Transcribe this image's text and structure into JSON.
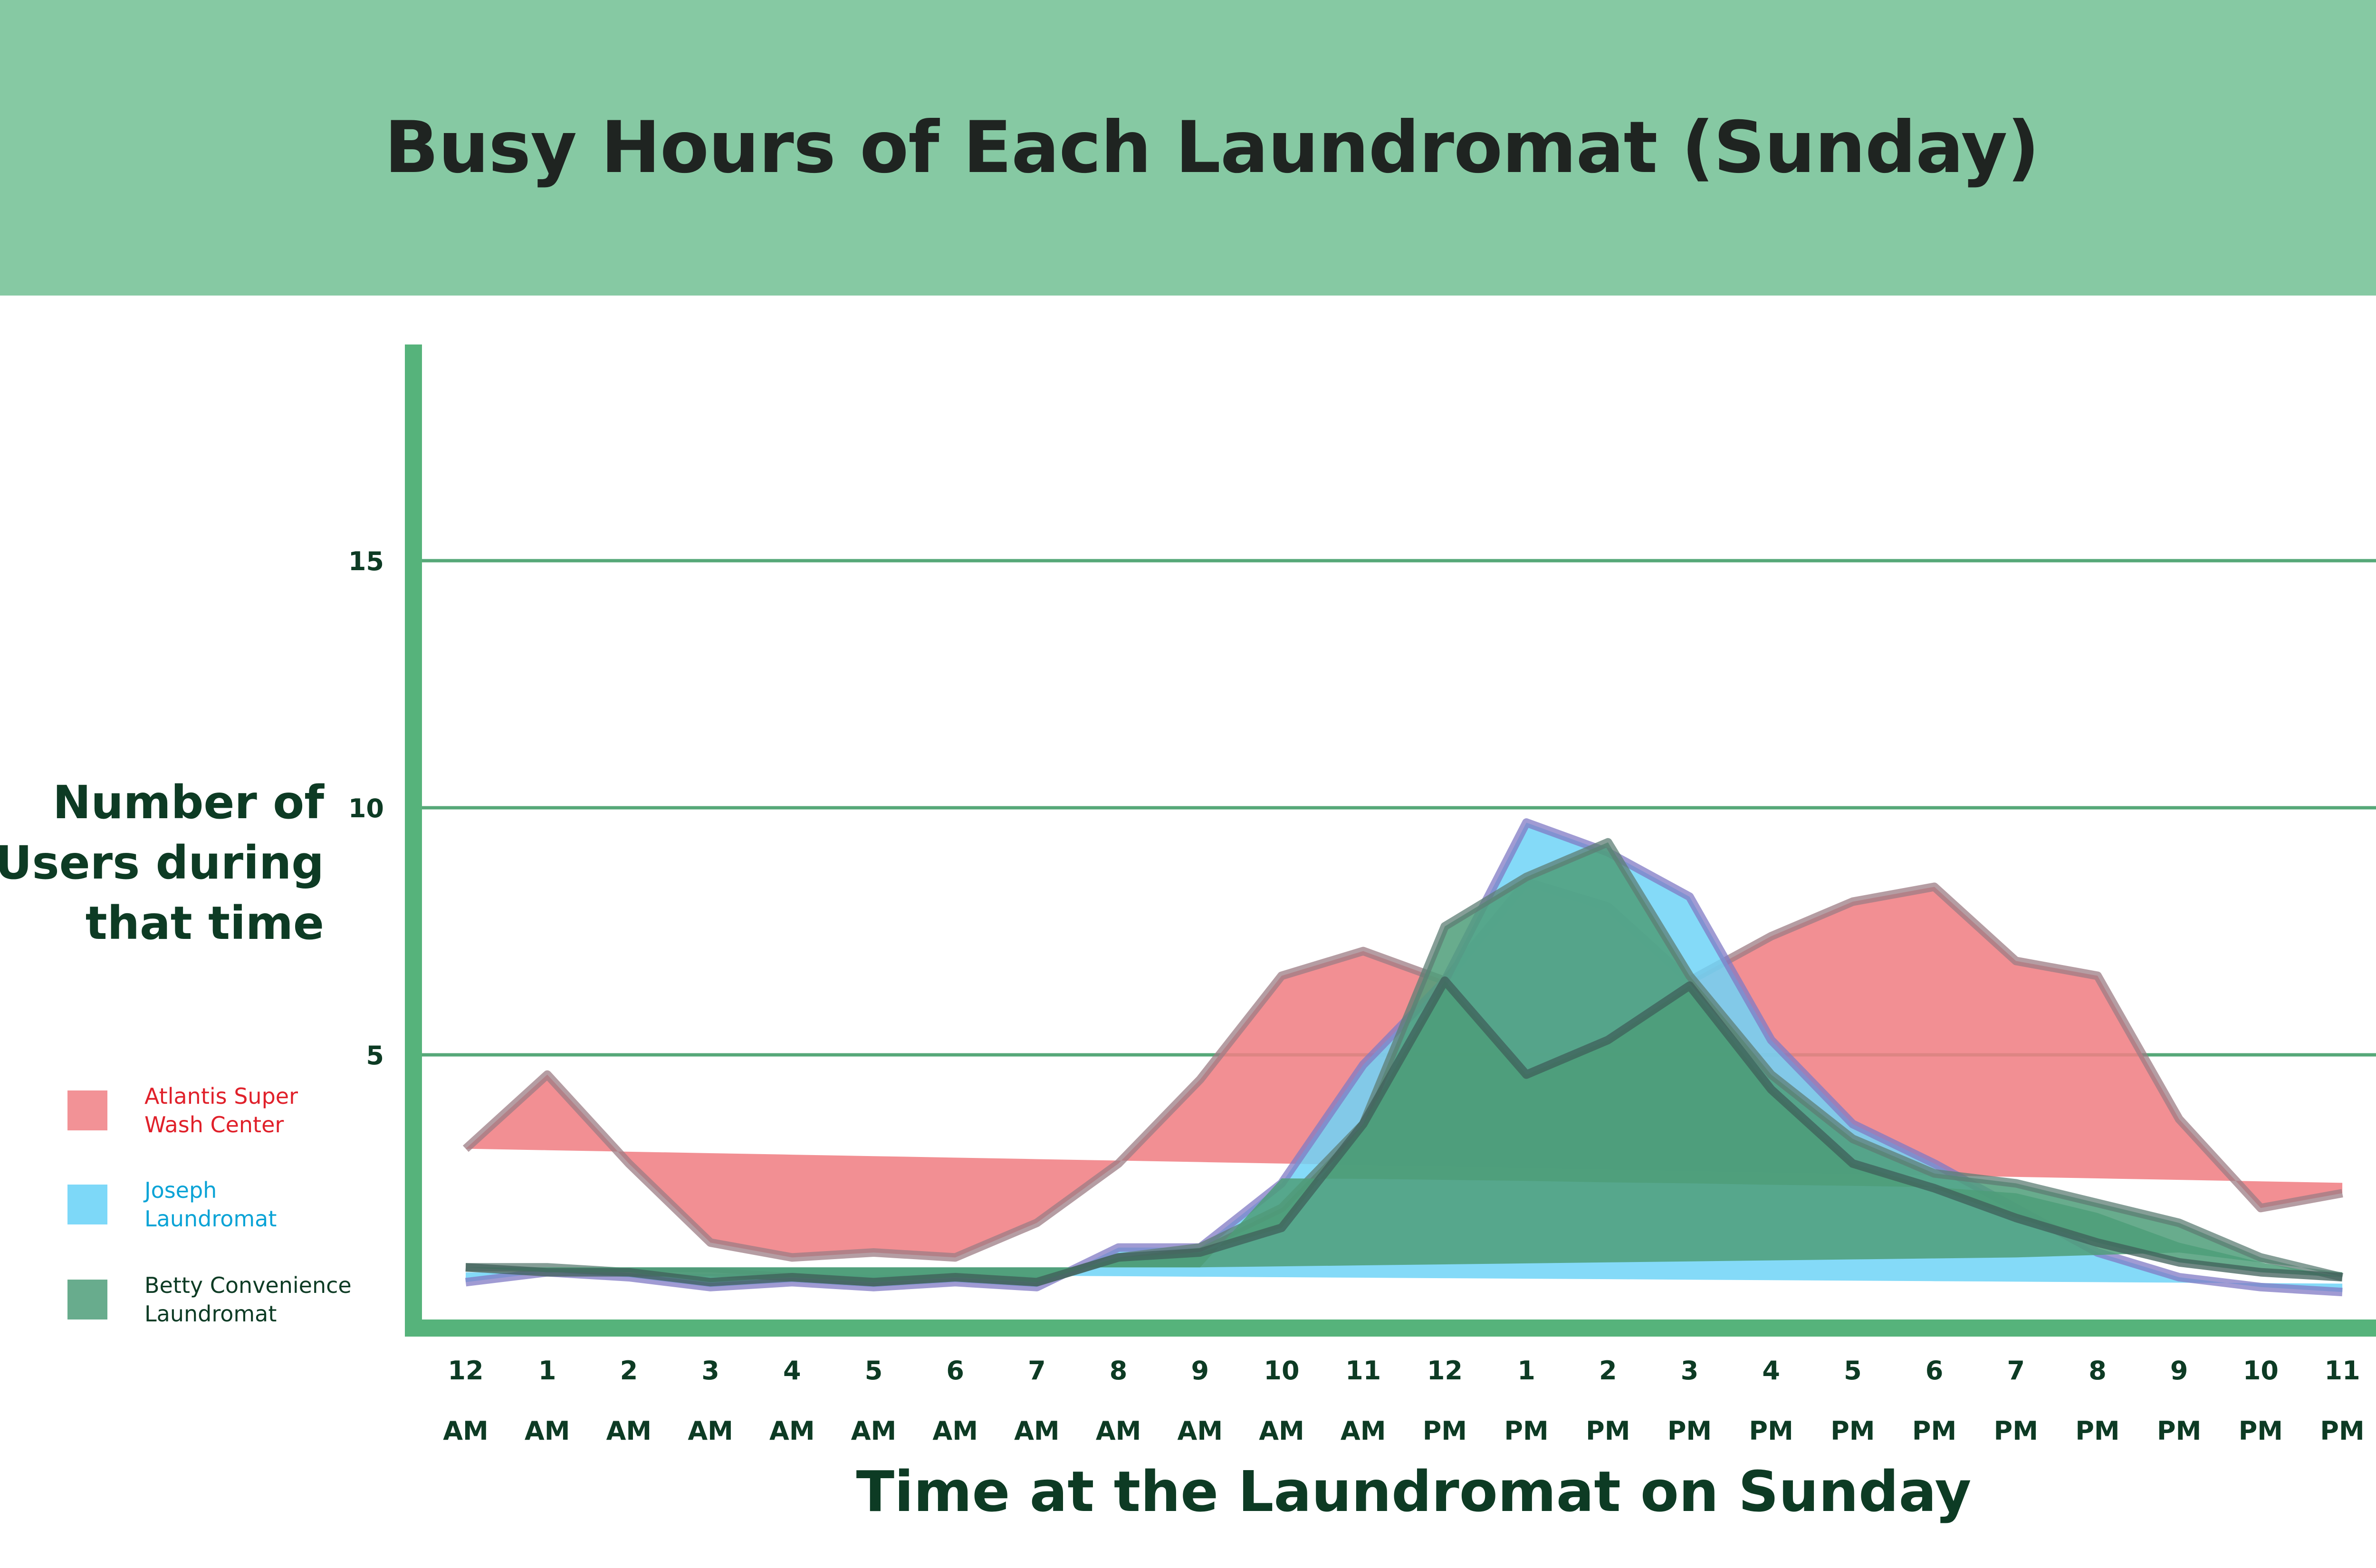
{
  "title": "Busy Hours of Each Laundromat (Sunday)",
  "colors": {
    "header_bg": "#86c9a3",
    "axis": "#56b37b",
    "grid": "#56a878",
    "title_text": "#1f2421",
    "label_text": "#0d3b24",
    "series": [
      "#f07f84",
      "#6fd4f7",
      "#4d9d79"
    ],
    "legend_text": [
      "#e0202a",
      "#0aa3d6",
      "#0d3b24"
    ]
  },
  "chart_data": {
    "type": "area",
    "title": "Busy Hours of Each Laundromat (Sunday)",
    "xlabel": "Time at the Laundromat on Sunday",
    "ylabel": "Number of Users during that time",
    "categories": [
      [
        "12",
        "AM"
      ],
      [
        "1",
        "AM"
      ],
      [
        "2",
        "AM"
      ],
      [
        "3",
        "AM"
      ],
      [
        "4",
        "AM"
      ],
      [
        "5",
        "AM"
      ],
      [
        "6",
        "AM"
      ],
      [
        "7",
        "AM"
      ],
      [
        "8",
        "AM"
      ],
      [
        "9",
        "AM"
      ],
      [
        "10",
        "AM"
      ],
      [
        "11",
        "AM"
      ],
      [
        "12",
        "PM"
      ],
      [
        "1",
        "PM"
      ],
      [
        "2",
        "PM"
      ],
      [
        "3",
        "PM"
      ],
      [
        "4",
        "PM"
      ],
      [
        "5",
        "PM"
      ],
      [
        "6",
        "PM"
      ],
      [
        "7",
        "PM"
      ],
      [
        "8",
        "PM"
      ],
      [
        "9",
        "PM"
      ],
      [
        "10",
        "PM"
      ],
      [
        "11",
        "PM"
      ]
    ],
    "ylim": [
      0,
      20
    ],
    "yticks": [
      5,
      10,
      15
    ],
    "grid": true,
    "legend_position": "left",
    "series": [
      {
        "name": "Atlantis Super Wash Center",
        "values": [
          3.1,
          4.6,
          2.8,
          1.2,
          0.9,
          1.0,
          0.9,
          1.6,
          2.8,
          4.5,
          6.6,
          7.1,
          6.5,
          8.5,
          8.0,
          6.5,
          7.4,
          8.1,
          8.4,
          6.9,
          6.6,
          3.7,
          1.9,
          2.2
        ],
        "base": [
          3.1,
          3.07,
          3.04,
          3.01,
          2.98,
          2.95,
          2.92,
          2.89,
          2.86,
          2.83,
          2.8,
          2.77,
          2.74,
          2.71,
          2.68,
          2.65,
          2.62,
          2.59,
          2.56,
          2.53,
          2.5,
          2.47,
          2.44,
          2.41
        ]
      },
      {
        "name": "Joseph Laundromat",
        "values": [
          0.4,
          0.6,
          0.5,
          0.3,
          0.4,
          0.3,
          0.4,
          0.3,
          1.1,
          1.1,
          2.4,
          4.8,
          6.5,
          9.7,
          9.1,
          8.2,
          5.3,
          3.6,
          2.8,
          1.9,
          1.0,
          0.5,
          0.3,
          0.2
        ],
        "base": [
          0.6,
          0.59,
          0.58,
          0.57,
          0.56,
          0.55,
          0.54,
          0.53,
          0.52,
          0.51,
          0.5,
          0.49,
          0.48,
          0.47,
          0.46,
          0.45,
          0.44,
          0.43,
          0.42,
          0.41,
          0.4,
          0.39,
          0.38,
          0.37
        ]
      },
      {
        "name": "Betty Convenience Laundromat",
        "values": [
          0.7,
          0.7,
          0.6,
          0.6,
          0.5,
          0.4,
          0.5,
          0.4,
          0.9,
          1.1,
          1.9,
          3.6,
          7.6,
          8.6,
          9.3,
          6.6,
          4.6,
          3.3,
          2.6,
          2.4,
          2.0,
          1.6,
          0.9,
          0.5
        ],
        "base": [
          0.7,
          0.7,
          0.7,
          0.7,
          0.7,
          0.7,
          0.7,
          0.7,
          0.7,
          0.7,
          0.72,
          0.74,
          0.76,
          0.78,
          0.8,
          0.82,
          0.84,
          0.86,
          0.88,
          0.9,
          0.95,
          1.0,
          0.8,
          0.6
        ]
      },
      {
        "name": "",
        "values": [
          0.7,
          0.6,
          0.6,
          0.4,
          0.5,
          0.4,
          0.5,
          0.4,
          0.9,
          1.0,
          1.5,
          3.6,
          6.5,
          4.6,
          5.3,
          6.4,
          4.3,
          2.8,
          2.3,
          1.7,
          1.2,
          0.8,
          0.6,
          0.5
        ],
        "base": [
          0.7,
          0.7,
          0.7,
          0.7,
          0.7,
          0.7,
          0.7,
          0.7,
          0.7,
          0.7,
          2.5,
          2.49,
          2.47,
          2.45,
          2.42,
          2.4,
          2.37,
          2.35,
          2.32,
          2.2,
          1.8,
          1.2,
          0.8,
          0.5
        ]
      }
    ],
    "legend": [
      {
        "label_line1": "Atlantis Super",
        "label_line2": "Wash Center"
      },
      {
        "label_line1": "Joseph",
        "label_line2": "Laundromat"
      },
      {
        "label_line1": "Betty Convenience",
        "label_line2": "Laundromat"
      }
    ],
    "ylabel_lines": [
      "Number of",
      "Users during",
      "that time"
    ]
  }
}
